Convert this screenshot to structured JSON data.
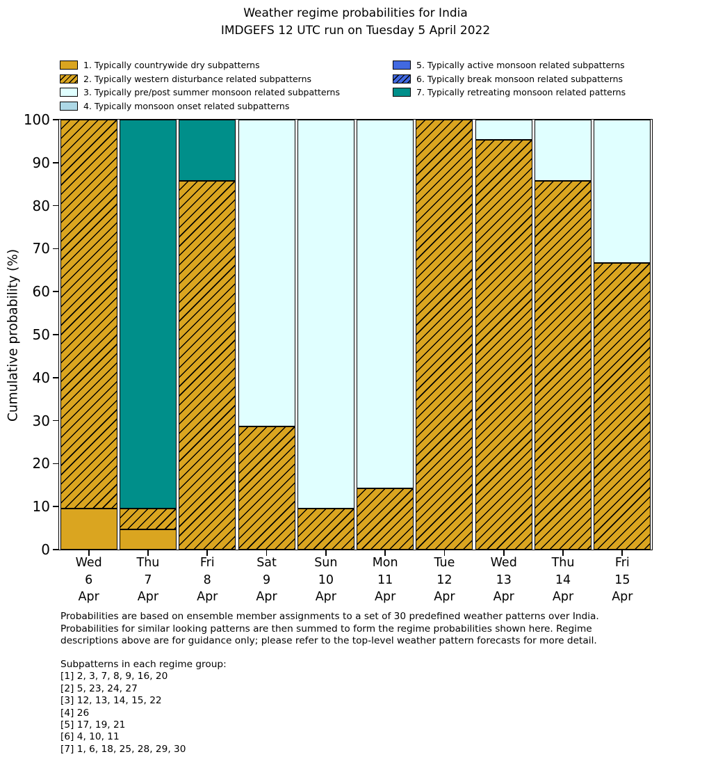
{
  "figure": {
    "title_line1": "Weather regime probabilities for India",
    "title_line2": "IMDGEFS 12 UTC run on Tuesday 5 April 2022"
  },
  "colors": {
    "dry_gold": "#DAA520",
    "pre_post_monsoon_cyan": "#E0FFFF",
    "monsoon_onset_lightblue": "#ADD8E6",
    "active_monsoon_royalblue": "#4169E1",
    "retreating_monsoon_teal": "#008F8A",
    "edge": "#000000",
    "background": "#FFFFFF"
  },
  "chart_data": {
    "type": "bar",
    "stacked": true,
    "title": "Weather regime probabilities for India — IMDGEFS 12 UTC run on Tuesday 5 April 2022",
    "xlabel": "",
    "ylabel": "Cumulative probability (%)",
    "ylim": [
      0,
      100
    ],
    "yticks": [
      0,
      10,
      20,
      30,
      40,
      50,
      60,
      70,
      80,
      90,
      100
    ],
    "grid": false,
    "legend_position": "top, two columns, frameless",
    "categories": [
      "Wed 6 Apr",
      "Thu 7 Apr",
      "Fri 8 Apr",
      "Sat 9 Apr",
      "Sun 10 Apr",
      "Mon 11 Apr",
      "Tue 12 Apr",
      "Wed 13 Apr",
      "Thu 14 Apr",
      "Fri 15 Apr"
    ],
    "category_lines": [
      [
        "Wed",
        "6",
        "Apr"
      ],
      [
        "Thu",
        "7",
        "Apr"
      ],
      [
        "Fri",
        "8",
        "Apr"
      ],
      [
        "Sat",
        "9",
        "Apr"
      ],
      [
        "Sun",
        "10",
        "Apr"
      ],
      [
        "Mon",
        "11",
        "Apr"
      ],
      [
        "Tue",
        "12",
        "Apr"
      ],
      [
        "Wed",
        "13",
        "Apr"
      ],
      [
        "Thu",
        "14",
        "Apr"
      ],
      [
        "Fri",
        "15",
        "Apr"
      ]
    ],
    "series": [
      {
        "regime": 1,
        "name": "1. Typically countrywide dry subpatterns",
        "color": "#DAA520",
        "hatch": false,
        "values": [
          9.52,
          4.76,
          0,
          0,
          0,
          0,
          0,
          0,
          0,
          0
        ]
      },
      {
        "regime": 2,
        "name": "2. Typically western disturbance related subpatterns",
        "color": "#DAA520",
        "hatch": true,
        "values": [
          90.48,
          4.76,
          85.71,
          28.57,
          9.52,
          14.29,
          100,
          95.24,
          85.71,
          66.67
        ]
      },
      {
        "regime": 3,
        "name": "3. Typically pre/post summer monsoon related subpatterns",
        "color": "#E0FFFF",
        "hatch": false,
        "values": [
          0,
          0,
          0,
          71.43,
          90.48,
          85.71,
          0,
          4.76,
          14.29,
          33.33
        ]
      },
      {
        "regime": 4,
        "name": "4. Typically monsoon onset related subpatterns",
        "color": "#ADD8E6",
        "hatch": false,
        "values": [
          0,
          0,
          0,
          0,
          0,
          0,
          0,
          0,
          0,
          0
        ]
      },
      {
        "regime": 5,
        "name": "5. Typically active monsoon related subpatterns",
        "color": "#4169E1",
        "hatch": false,
        "values": [
          0,
          0,
          0,
          0,
          0,
          0,
          0,
          0,
          0,
          0
        ]
      },
      {
        "regime": 6,
        "name": "6. Typically break monsoon related subpatterns",
        "color": "#4169E1",
        "hatch": true,
        "values": [
          0,
          0,
          0,
          0,
          0,
          0,
          0,
          0,
          0,
          0
        ]
      },
      {
        "regime": 7,
        "name": "7. Typically retreating monsoon related patterns",
        "color": "#008F8A",
        "hatch": false,
        "values": [
          0,
          90.48,
          14.29,
          0,
          0,
          0,
          0,
          0,
          0,
          0
        ]
      }
    ]
  },
  "footer": {
    "lines": [
      "Probabilities are based on ensemble member assignments to a set of 30 predefined weather patterns over India.",
      "Probabilities for similar looking patterns are then summed to form the regime probabilities shown here. Regime",
      "descriptions above are for guidance only; please refer to the top-level weather pattern forecasts for more detail."
    ]
  },
  "subpatterns": {
    "heading": "Subpatterns in each regime group:",
    "lines": [
      "[1] 2, 3, 7, 8, 9, 16, 20",
      "[2] 5, 23, 24, 27",
      "[3] 12, 13, 14, 15, 22",
      "[4] 26",
      "[5] 17, 19, 21",
      "[6] 4, 10, 11",
      "[7] 1, 6, 18, 25, 28, 29, 30"
    ]
  }
}
